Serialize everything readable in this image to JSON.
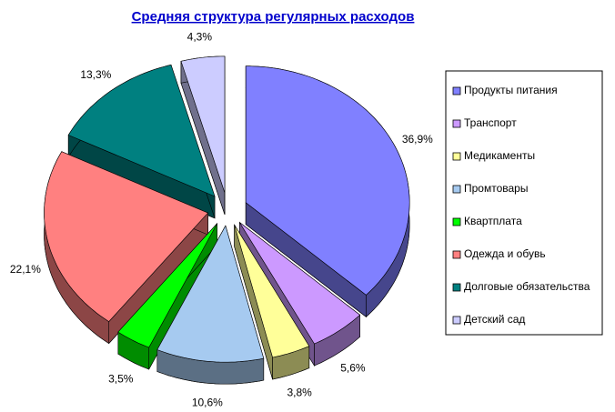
{
  "chart_data": {
    "type": "pie",
    "title": "Средняя структура регулярных расходов",
    "categories": [
      "Продукты питания",
      "Транспорт",
      "Медикаменты",
      "Промтовары",
      "Квартплата",
      "Одежда и обувь",
      "Долговые обязательства",
      "Детский сад"
    ],
    "values": [
      36.9,
      5.6,
      3.8,
      10.6,
      3.5,
      22.1,
      13.3,
      4.3
    ],
    "value_labels": [
      "36,9%",
      "5,6%",
      "3,8%",
      "10,6%",
      "3,5%",
      "22,1%",
      "13,3%",
      "4,3%"
    ],
    "colors": [
      "#8080ff",
      "#cc99ff",
      "#ffff99",
      "#a6caf0",
      "#00ff00",
      "#ff8080",
      "#008080",
      "#ccccff"
    ],
    "legend": "right"
  }
}
